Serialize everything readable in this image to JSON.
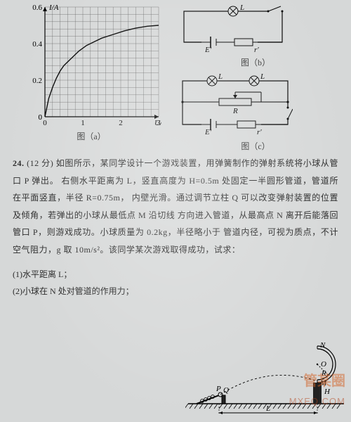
{
  "chart": {
    "type": "line",
    "xlabel": "U/V",
    "ylabel": "I/A",
    "xlim": [
      0,
      3
    ],
    "ylim": [
      0,
      0.6
    ],
    "xticks": [
      0,
      1,
      2,
      3
    ],
    "yticks_major": [
      0,
      0.2,
      0.4,
      0.6
    ],
    "grid_x_step": 0.2,
    "grid_y_step": 0.04,
    "grid_color": "#555555",
    "axis_color": "#000000",
    "background": "#d6d8d8",
    "curve_color": "#000000",
    "curve_width": 1.4,
    "label_fontsize": 11,
    "points": [
      [
        0,
        0
      ],
      [
        0.1,
        0.1
      ],
      [
        0.2,
        0.16
      ],
      [
        0.3,
        0.21
      ],
      [
        0.4,
        0.25
      ],
      [
        0.5,
        0.28
      ],
      [
        0.7,
        0.32
      ],
      [
        0.9,
        0.36
      ],
      [
        1.1,
        0.39
      ],
      [
        1.3,
        0.41
      ],
      [
        1.5,
        0.43
      ],
      [
        1.8,
        0.45
      ],
      [
        2.1,
        0.47
      ],
      [
        2.4,
        0.485
      ],
      [
        2.7,
        0.495
      ],
      [
        3.0,
        0.5
      ]
    ]
  },
  "figA_caption": "图（a）",
  "circuit_b": {
    "caption": "图（b）",
    "stroke": "#000000",
    "lamp_label": "L",
    "emf_label": "E'",
    "res_label": "r'"
  },
  "circuit_c": {
    "caption": "图（c）",
    "stroke": "#000000",
    "lamp_label": "L",
    "R_label": "R",
    "emf_label": "E'",
    "res_label": "r'"
  },
  "problem": {
    "number": "24.",
    "points": "(12 分)",
    "lines": [
      "如图所示，某同学设计一个游戏装置，用弹簧制作的弹射系统将小球从管口 P 弹出。",
      "右侧水平距离为 L，竖直高度为 H=0.5m 处固定一半圆形管道，管道所在平面竖直，半径 R=0.75m，",
      "内壁光滑。通过调节立柱 Q 可以改变弹射装置的位置及倾角，若弹出的小球从最低点 M 沿切线",
      "方向进入管道，从最高点 N 离开后能落回管口 P，则游戏成功。小球质量为 0.2kg，半径略小于",
      "管道内径，可视为质点，不计空气阻力，g 取 10m/s²。该同学某次游戏取得成功，试求："
    ],
    "q1": "(1)水平距离 L；",
    "q2": "(2)小球在 N 处对管道的作用力；"
  },
  "diagram": {
    "stroke": "#000000",
    "hatch_color": "#000000",
    "labels": {
      "N": "N",
      "O": "O",
      "R": "R",
      "M": "M",
      "H": "H",
      "L": "L",
      "P": "P",
      "Q": "Q"
    }
  },
  "watermark_main": "管某圈",
  "watermark_sub": "MXEQ.COM"
}
